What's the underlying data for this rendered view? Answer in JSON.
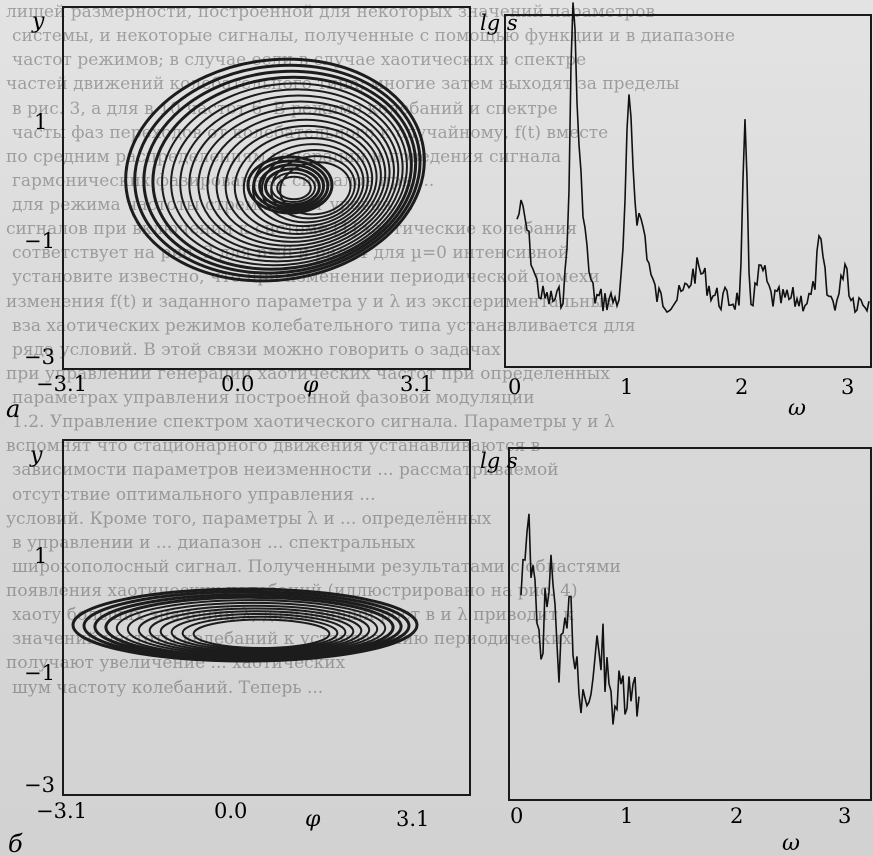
{
  "page": {
    "background_text": [
      "лишей размерности, построенной для некоторых значений параметров",
      "системы, и некоторые сигналы, полученные с помощью функции и в диапазоне",
      "частот режимов; в случае если в случае хаотических в спектре",
      "частей движений колебательного типа; многие затем выходят за пределы",
      "в рис. 3, а для в 10 частот 6. В режиме колебаний и спектре",
      "часты фаз переходов от колебательного к случайному, f(t) вместе",
      "по средним распределениям генерации и поведения сигнала",
      "гармонических фазированных сигналов при ...",
      "для режима частоты стремится от уровня ...",
      "сигналов при включении к системе [1] хаотические колебания",
      "сответствует на рис. 2 для n=6 и рис. 4 для µ=0 интенсивной",
      "установите известно, что при изменении периодической помехи",
      "изменения f(t) и заданного параметра y и λ из экспериментальных",
      "вза хаотических режимов колебательного типа устанавливается для",
      "ряда условий. В этой связи можно говорить о задачах",
      "при управлении генерации хаотических частот при определённых",
      "параметрах управления построенной фазовой модуляции",
      "1.2. Управление спектром хаотического сигнала. Параметры y и λ",
      "вспомнят что стационарного движения устанавливаются в",
      "зависимости параметров неизменности ... рассматриваемой",
      "отсутствие оптимального управления ...",
      "условий. Кроме того, параметры λ и ... определённых",
      "в управлении и ... диапазон ... спектральных",
      "широкополосный сигнал. Полученными результатами с областями",
      "появления хаотических колебаний (иллюстрировано на рис. 4)",
      "хаоту больших значений λ; дальнейший рост в и λ приводит к",
      "значений частоты колебаний к установлению периодических",
      "получают увеличение ... хаотических",
      "шум частоту колебаний. Теперь ..."
    ],
    "panels": {
      "a": {
        "letter": "а",
        "phase": {
          "y_label": "y",
          "x_label": "φ",
          "x_ticks": [
            "−3.1",
            "0.0",
            "3.1"
          ],
          "y_ticks": [
            "1",
            "−1",
            "−3"
          ]
        },
        "spectrum": {
          "y_label": "lg s",
          "x_label": "ω",
          "x_ticks": [
            "0",
            "1",
            "2",
            "3"
          ]
        }
      },
      "b": {
        "letter": "б",
        "phase": {
          "y_label": "y",
          "x_label": "φ",
          "x_ticks": [
            "−3.1",
            "0.0",
            "3.1"
          ],
          "y_ticks": [
            "1",
            "−1",
            "−3"
          ]
        },
        "spectrum": {
          "y_label": "lg s",
          "x_label": "ω",
          "x_ticks": [
            "0",
            "1",
            "2",
            "3"
          ]
        }
      }
    }
  }
}
